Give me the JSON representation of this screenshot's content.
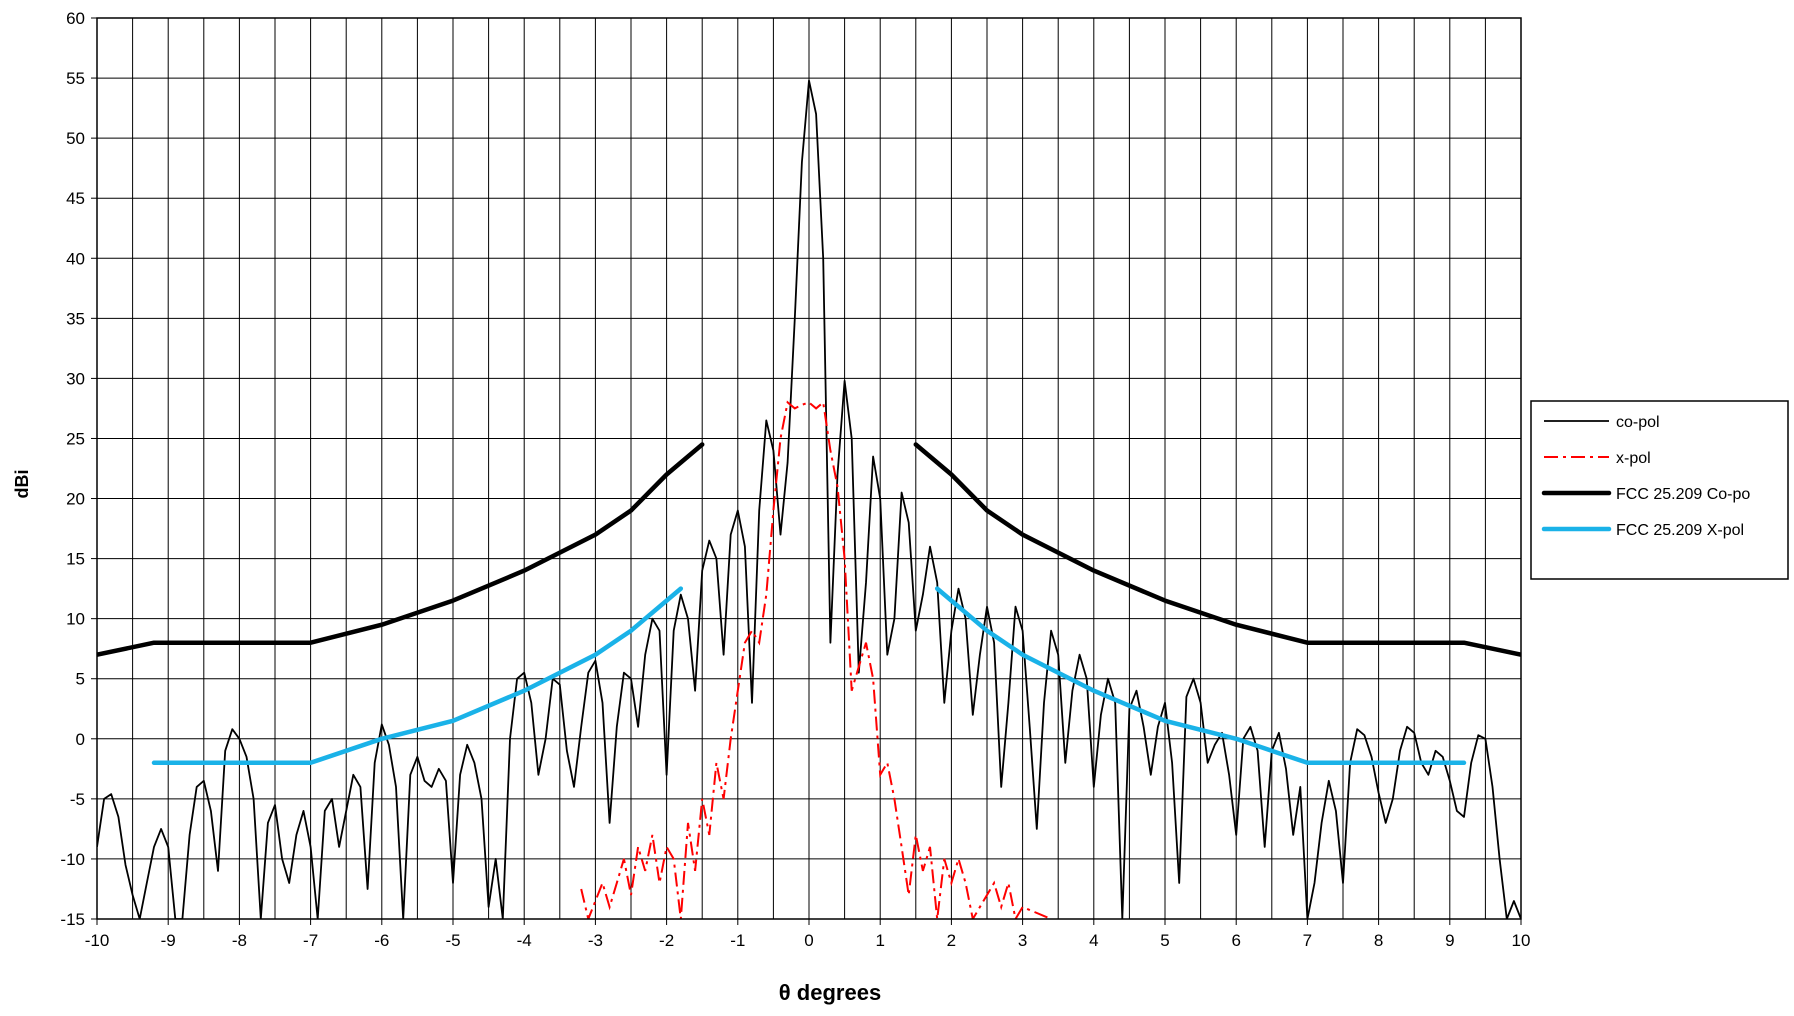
{
  "chart_data": {
    "type": "line",
    "title": "",
    "xlabel": "θ degrees",
    "ylabel": "dBi",
    "xlim": [
      -10,
      10
    ],
    "ylim": [
      -15,
      60
    ],
    "xticks": [
      -10,
      -9,
      -8,
      -7,
      -6,
      -5,
      -4,
      -3,
      -2,
      -1,
      0,
      1,
      2,
      3,
      4,
      5,
      6,
      7,
      8,
      9,
      10
    ],
    "yticks": [
      -15,
      -10,
      -5,
      0,
      5,
      10,
      15,
      20,
      25,
      30,
      35,
      40,
      45,
      50,
      55,
      60
    ],
    "x_tick_step": 0.5,
    "y_tick_step": 5,
    "grid": true,
    "legend_position": "right",
    "series": [
      {
        "name": "co-pol",
        "color": "#000000",
        "style": "solid",
        "points": [
          [
            -10,
            -9
          ],
          [
            -9.9,
            -5
          ],
          [
            -9.8,
            -4.6
          ],
          [
            -9.7,
            -6.5
          ],
          [
            -9.6,
            -10.5
          ],
          [
            -9.5,
            -13
          ],
          [
            -9.4,
            -15
          ],
          [
            -9.3,
            -12
          ],
          [
            -9.2,
            -9
          ],
          [
            -9.1,
            -7.5
          ],
          [
            -9.0,
            -9
          ],
          [
            -8.9,
            -15
          ],
          [
            -8.8,
            -15
          ],
          [
            -8.7,
            -8
          ],
          [
            -8.6,
            -4
          ],
          [
            -8.5,
            -3.5
          ],
          [
            -8.4,
            -6
          ],
          [
            -8.3,
            -11
          ],
          [
            -8.2,
            -1
          ],
          [
            -8.1,
            0.8
          ],
          [
            -8.0,
            0
          ],
          [
            -7.9,
            -1.5
          ],
          [
            -7.8,
            -5
          ],
          [
            -7.7,
            -15
          ],
          [
            -7.6,
            -7
          ],
          [
            -7.5,
            -5.5
          ],
          [
            -7.4,
            -10
          ],
          [
            -7.3,
            -12
          ],
          [
            -7.2,
            -8
          ],
          [
            -7.1,
            -6
          ],
          [
            -7.0,
            -9
          ],
          [
            -6.9,
            -15
          ],
          [
            -6.8,
            -6
          ],
          [
            -6.7,
            -5
          ],
          [
            -6.6,
            -9
          ],
          [
            -6.5,
            -6
          ],
          [
            -6.4,
            -3
          ],
          [
            -6.3,
            -4
          ],
          [
            -6.2,
            -12.5
          ],
          [
            -6.1,
            -2
          ],
          [
            -6.0,
            1.2
          ],
          [
            -5.9,
            -0.5
          ],
          [
            -5.8,
            -4
          ],
          [
            -5.7,
            -15
          ],
          [
            -5.6,
            -3
          ],
          [
            -5.5,
            -1.5
          ],
          [
            -5.4,
            -3.5
          ],
          [
            -5.3,
            -4
          ],
          [
            -5.2,
            -2.5
          ],
          [
            -5.1,
            -3.5
          ],
          [
            -5.0,
            -12
          ],
          [
            -4.9,
            -3
          ],
          [
            -4.8,
            -0.5
          ],
          [
            -4.7,
            -2
          ],
          [
            -4.6,
            -5
          ],
          [
            -4.5,
            -14
          ],
          [
            -4.4,
            -10
          ],
          [
            -4.3,
            -15
          ],
          [
            -4.2,
            0
          ],
          [
            -4.1,
            5
          ],
          [
            -4.0,
            5.5
          ],
          [
            -3.9,
            3
          ],
          [
            -3.8,
            -3
          ],
          [
            -3.7,
            0
          ],
          [
            -3.6,
            5
          ],
          [
            -3.5,
            4.5
          ],
          [
            -3.4,
            -1
          ],
          [
            -3.3,
            -4
          ],
          [
            -3.2,
            1
          ],
          [
            -3.1,
            5.5
          ],
          [
            -3.0,
            6.5
          ],
          [
            -2.9,
            3
          ],
          [
            -2.8,
            -7
          ],
          [
            -2.7,
            1
          ],
          [
            -2.6,
            5.5
          ],
          [
            -2.5,
            5
          ],
          [
            -2.4,
            1
          ],
          [
            -2.3,
            7
          ],
          [
            -2.2,
            10
          ],
          [
            -2.1,
            9
          ],
          [
            -2.0,
            -3
          ],
          [
            -1.9,
            9
          ],
          [
            -1.8,
            12
          ],
          [
            -1.7,
            10
          ],
          [
            -1.6,
            4
          ],
          [
            -1.5,
            14
          ],
          [
            -1.4,
            16.5
          ],
          [
            -1.3,
            15
          ],
          [
            -1.2,
            7
          ],
          [
            -1.1,
            17
          ],
          [
            -1.0,
            19
          ],
          [
            -0.9,
            16
          ],
          [
            -0.8,
            3
          ],
          [
            -0.7,
            19
          ],
          [
            -0.6,
            26.5
          ],
          [
            -0.5,
            24
          ],
          [
            -0.4,
            17
          ],
          [
            -0.3,
            23
          ],
          [
            -0.2,
            35
          ],
          [
            -0.1,
            48
          ],
          [
            0,
            54.8
          ],
          [
            0.1,
            52
          ],
          [
            0.2,
            40
          ],
          [
            0.3,
            8
          ],
          [
            0.4,
            22
          ],
          [
            0.5,
            29.8
          ],
          [
            0.6,
            25
          ],
          [
            0.7,
            5.5
          ],
          [
            0.8,
            13
          ],
          [
            0.9,
            23.5
          ],
          [
            1.0,
            20
          ],
          [
            1.1,
            7
          ],
          [
            1.2,
            10
          ],
          [
            1.3,
            20.5
          ],
          [
            1.4,
            18
          ],
          [
            1.5,
            9
          ],
          [
            1.6,
            12
          ],
          [
            1.7,
            16
          ],
          [
            1.8,
            13
          ],
          [
            1.9,
            3
          ],
          [
            2.0,
            9
          ],
          [
            2.1,
            12.5
          ],
          [
            2.2,
            10
          ],
          [
            2.3,
            2
          ],
          [
            2.4,
            7
          ],
          [
            2.5,
            11
          ],
          [
            2.6,
            8
          ],
          [
            2.7,
            -4
          ],
          [
            2.8,
            3
          ],
          [
            2.9,
            11
          ],
          [
            3.0,
            9
          ],
          [
            3.1,
            1
          ],
          [
            3.2,
            -7.5
          ],
          [
            3.3,
            3
          ],
          [
            3.4,
            9
          ],
          [
            3.5,
            7
          ],
          [
            3.6,
            -2
          ],
          [
            3.7,
            4
          ],
          [
            3.8,
            7
          ],
          [
            3.9,
            5
          ],
          [
            4.0,
            -4
          ],
          [
            4.1,
            2
          ],
          [
            4.2,
            5
          ],
          [
            4.3,
            3
          ],
          [
            4.4,
            -15
          ],
          [
            4.5,
            2.5
          ],
          [
            4.6,
            4
          ],
          [
            4.7,
            1
          ],
          [
            4.8,
            -3
          ],
          [
            4.9,
            1
          ],
          [
            5.0,
            3
          ],
          [
            5.1,
            -2
          ],
          [
            5.2,
            -12
          ],
          [
            5.3,
            3.5
          ],
          [
            5.4,
            5
          ],
          [
            5.5,
            3
          ],
          [
            5.6,
            -2
          ],
          [
            5.7,
            -0.5
          ],
          [
            5.8,
            0.5
          ],
          [
            5.9,
            -3
          ],
          [
            6.0,
            -8
          ],
          [
            6.1,
            0
          ],
          [
            6.2,
            1
          ],
          [
            6.3,
            -1
          ],
          [
            6.4,
            -9
          ],
          [
            6.5,
            -1
          ],
          [
            6.6,
            0.5
          ],
          [
            6.7,
            -2.5
          ],
          [
            6.8,
            -8
          ],
          [
            6.9,
            -4
          ],
          [
            7.0,
            -15
          ],
          [
            7.1,
            -12
          ],
          [
            7.2,
            -7
          ],
          [
            7.3,
            -3.5
          ],
          [
            7.4,
            -6
          ],
          [
            7.5,
            -12
          ],
          [
            7.6,
            -2
          ],
          [
            7.7,
            0.8
          ],
          [
            7.8,
            0.3
          ],
          [
            7.9,
            -1.5
          ],
          [
            8.0,
            -4.5
          ],
          [
            8.1,
            -7
          ],
          [
            8.2,
            -5
          ],
          [
            8.3,
            -1
          ],
          [
            8.4,
            1
          ],
          [
            8.5,
            0.5
          ],
          [
            8.6,
            -2
          ],
          [
            8.7,
            -3
          ],
          [
            8.8,
            -1
          ],
          [
            8.9,
            -1.5
          ],
          [
            9.0,
            -3.5
          ],
          [
            9.1,
            -6
          ],
          [
            9.2,
            -6.5
          ],
          [
            9.3,
            -2
          ],
          [
            9.4,
            0.3
          ],
          [
            9.5,
            0
          ],
          [
            9.6,
            -4
          ],
          [
            9.7,
            -10
          ],
          [
            9.8,
            -15
          ],
          [
            9.9,
            -13.5
          ],
          [
            10,
            -15
          ]
        ]
      },
      {
        "name": "x-pol",
        "color": "#ff0000",
        "style": "dashdot",
        "points": [
          [
            -3.2,
            -12.5
          ],
          [
            -3.1,
            -15
          ],
          [
            -2.9,
            -12
          ],
          [
            -2.8,
            -14
          ],
          [
            -2.7,
            -12
          ],
          [
            -2.6,
            -10
          ],
          [
            -2.5,
            -13
          ],
          [
            -2.4,
            -9
          ],
          [
            -2.3,
            -11
          ],
          [
            -2.2,
            -8
          ],
          [
            -2.1,
            -12
          ],
          [
            -2.0,
            -9
          ],
          [
            -1.9,
            -10
          ],
          [
            -1.8,
            -15
          ],
          [
            -1.7,
            -7
          ],
          [
            -1.6,
            -11
          ],
          [
            -1.5,
            -5
          ],
          [
            -1.4,
            -8
          ],
          [
            -1.3,
            -2
          ],
          [
            -1.2,
            -5
          ],
          [
            -1.1,
            0
          ],
          [
            -1.0,
            4
          ],
          [
            -0.9,
            8
          ],
          [
            -0.8,
            9
          ],
          [
            -0.7,
            8
          ],
          [
            -0.6,
            12
          ],
          [
            -0.5,
            19
          ],
          [
            -0.4,
            25
          ],
          [
            -0.3,
            28
          ],
          [
            -0.2,
            27.5
          ],
          [
            -0.1,
            27.8
          ],
          [
            0,
            28
          ],
          [
            0.1,
            27.5
          ],
          [
            0.2,
            28
          ],
          [
            0.3,
            24
          ],
          [
            0.4,
            21
          ],
          [
            0.5,
            15
          ],
          [
            0.6,
            4
          ],
          [
            0.7,
            6
          ],
          [
            0.8,
            8
          ],
          [
            0.9,
            5
          ],
          [
            1.0,
            -3
          ],
          [
            1.1,
            -2
          ],
          [
            1.2,
            -5
          ],
          [
            1.3,
            -9
          ],
          [
            1.4,
            -13
          ],
          [
            1.5,
            -8
          ],
          [
            1.6,
            -11
          ],
          [
            1.7,
            -9
          ],
          [
            1.8,
            -15
          ],
          [
            1.9,
            -10
          ],
          [
            2.0,
            -12
          ],
          [
            2.1,
            -10
          ],
          [
            2.2,
            -12
          ],
          [
            2.3,
            -15
          ],
          [
            2.6,
            -12
          ],
          [
            2.7,
            -14
          ],
          [
            2.8,
            -12
          ],
          [
            2.9,
            -15
          ],
          [
            3.0,
            -14
          ],
          [
            3.4,
            -15
          ]
        ]
      },
      {
        "name": "FCC 25.209 Co-po",
        "color": "#000000",
        "style": "thick",
        "segments": [
          [
            [
              -10,
              7
            ],
            [
              -9.2,
              8
            ],
            [
              -7,
              8
            ],
            [
              -6,
              9.5
            ],
            [
              -5,
              11.5
            ],
            [
              -4,
              14
            ],
            [
              -3,
              17
            ],
            [
              -2.5,
              19
            ],
            [
              -2,
              22
            ],
            [
              -1.5,
              24.5
            ]
          ],
          [
            [
              1.5,
              24.5
            ],
            [
              2,
              22
            ],
            [
              2.5,
              19
            ],
            [
              3,
              17
            ],
            [
              4,
              14
            ],
            [
              5,
              11.5
            ],
            [
              6,
              9.5
            ],
            [
              7,
              8
            ],
            [
              9.2,
              8
            ],
            [
              10,
              7
            ]
          ]
        ]
      },
      {
        "name": "FCC 25.209 X-pol",
        "color": "#1ab2e8",
        "style": "thick",
        "segments": [
          [
            [
              -9.2,
              -2
            ],
            [
              -7,
              -2
            ],
            [
              -6,
              0
            ],
            [
              -5,
              1.5
            ],
            [
              -4,
              4
            ],
            [
              -3,
              7
            ],
            [
              -2.5,
              9
            ],
            [
              -2,
              11.5
            ],
            [
              -1.8,
              12.5
            ]
          ],
          [
            [
              1.8,
              12.5
            ],
            [
              2,
              11.5
            ],
            [
              2.5,
              9
            ],
            [
              3,
              7
            ],
            [
              4,
              4
            ],
            [
              5,
              1.5
            ],
            [
              6,
              0
            ],
            [
              7,
              -2
            ],
            [
              9.2,
              -2
            ]
          ]
        ]
      }
    ]
  }
}
